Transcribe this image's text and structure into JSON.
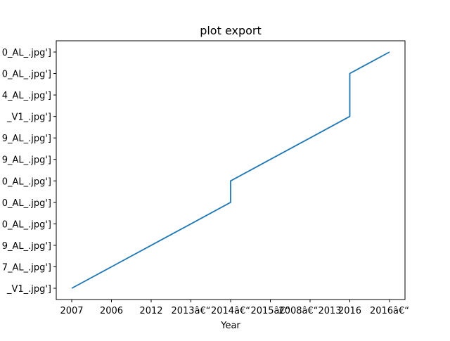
{
  "chart_data": {
    "type": "line",
    "title": "plot export",
    "xlabel": "Year",
    "ylabel": "",
    "grid": false,
    "x_ticks": [
      "2007",
      "2006",
      "2012",
      "2013â€“",
      "2014â€“",
      "2015â€“",
      "2008â€“2013",
      "2016",
      "2016â€“"
    ],
    "y_ticks": [
      "_V1_.jpg']",
      "7_AL_.jpg']",
      "9_AL_.jpg']",
      "0_AL_.jpg']",
      "0_AL_.jpg']",
      "0_AL_.jpg']",
      "9_AL_.jpg']",
      "9_AL_.jpg']",
      "_V1_.jpg']",
      "4_AL_.jpg']",
      "0_AL_.jpg']",
      "0_AL_.jpg']"
    ],
    "series": [
      {
        "color": "#1f77b4",
        "points": [
          [
            "2007",
            "_V1_.jpg']"
          ],
          [
            "2006",
            "7_AL_.jpg']"
          ],
          [
            "2012",
            "9_AL_.jpg']"
          ],
          [
            "2013â€“",
            "0_AL_.jpg']"
          ],
          [
            "2014â€“",
            "0_AL_.jpg']"
          ],
          [
            "2014â€“",
            "0_AL_.jpg']"
          ],
          [
            "2015â€“",
            "9_AL_.jpg']"
          ],
          [
            "2008â€“2013",
            "9_AL_.jpg']"
          ],
          [
            "2016",
            "_V1_.jpg']"
          ],
          [
            "2016",
            "4_AL_.jpg']"
          ],
          [
            "2016",
            "0_AL_.jpg']"
          ],
          [
            "2016â€“",
            "0_AL_.jpg']"
          ]
        ],
        "x_index": [
          0,
          1,
          2,
          3,
          4,
          4,
          5,
          6,
          7,
          7,
          7,
          8
        ],
        "y_index": [
          0,
          1,
          2,
          3,
          4,
          5,
          6,
          7,
          8,
          9,
          10,
          11
        ]
      }
    ]
  }
}
